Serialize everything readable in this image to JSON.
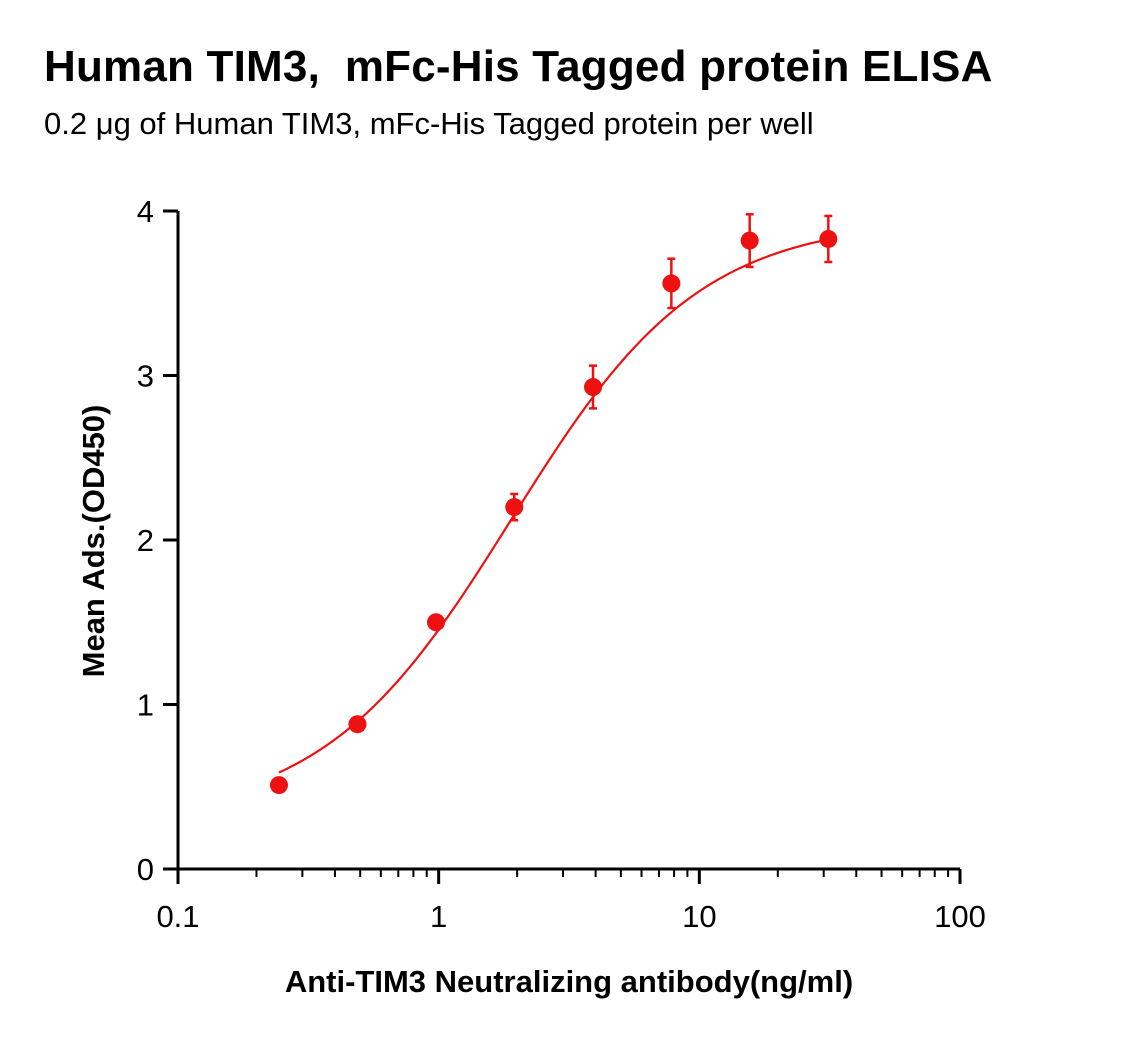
{
  "chart_data": {
    "type": "scatter",
    "title": "Human TIM3,  mFc-His Tagged protein ELISA",
    "subtitle": "0.2 μg of Human TIM3, mFc-His Tagged protein per well",
    "xlabel": "Anti-TIM3 Neutralizing antibody(ng/ml)",
    "ylabel": "Mean Ads.(OD450)",
    "x_scale": "log",
    "xlim": [
      0.1,
      100
    ],
    "ylim": [
      0,
      4
    ],
    "x_ticks": [
      "0.1",
      "1",
      "10",
      "100"
    ],
    "y_ticks": [
      "0",
      "1",
      "2",
      "3",
      "4"
    ],
    "grid": false,
    "legend": "none",
    "series": [
      {
        "color": "#ee1111",
        "fit": "sigmoidal",
        "points": [
          {
            "x": 0.244,
            "y": 0.51,
            "err": 0.02
          },
          {
            "x": 0.488,
            "y": 0.88,
            "err": 0.03
          },
          {
            "x": 0.977,
            "y": 1.5,
            "err": 0.03
          },
          {
            "x": 1.95,
            "y": 2.2,
            "err": 0.08
          },
          {
            "x": 3.91,
            "y": 2.93,
            "err": 0.13
          },
          {
            "x": 7.81,
            "y": 3.56,
            "err": 0.15
          },
          {
            "x": 15.6,
            "y": 3.82,
            "err": 0.16
          },
          {
            "x": 31.25,
            "y": 3.83,
            "err": 0.14
          }
        ],
        "curve": {
          "bottom": 0.3,
          "top": 3.95,
          "ec50": 1.9,
          "hill": 1.2
        }
      }
    ]
  }
}
